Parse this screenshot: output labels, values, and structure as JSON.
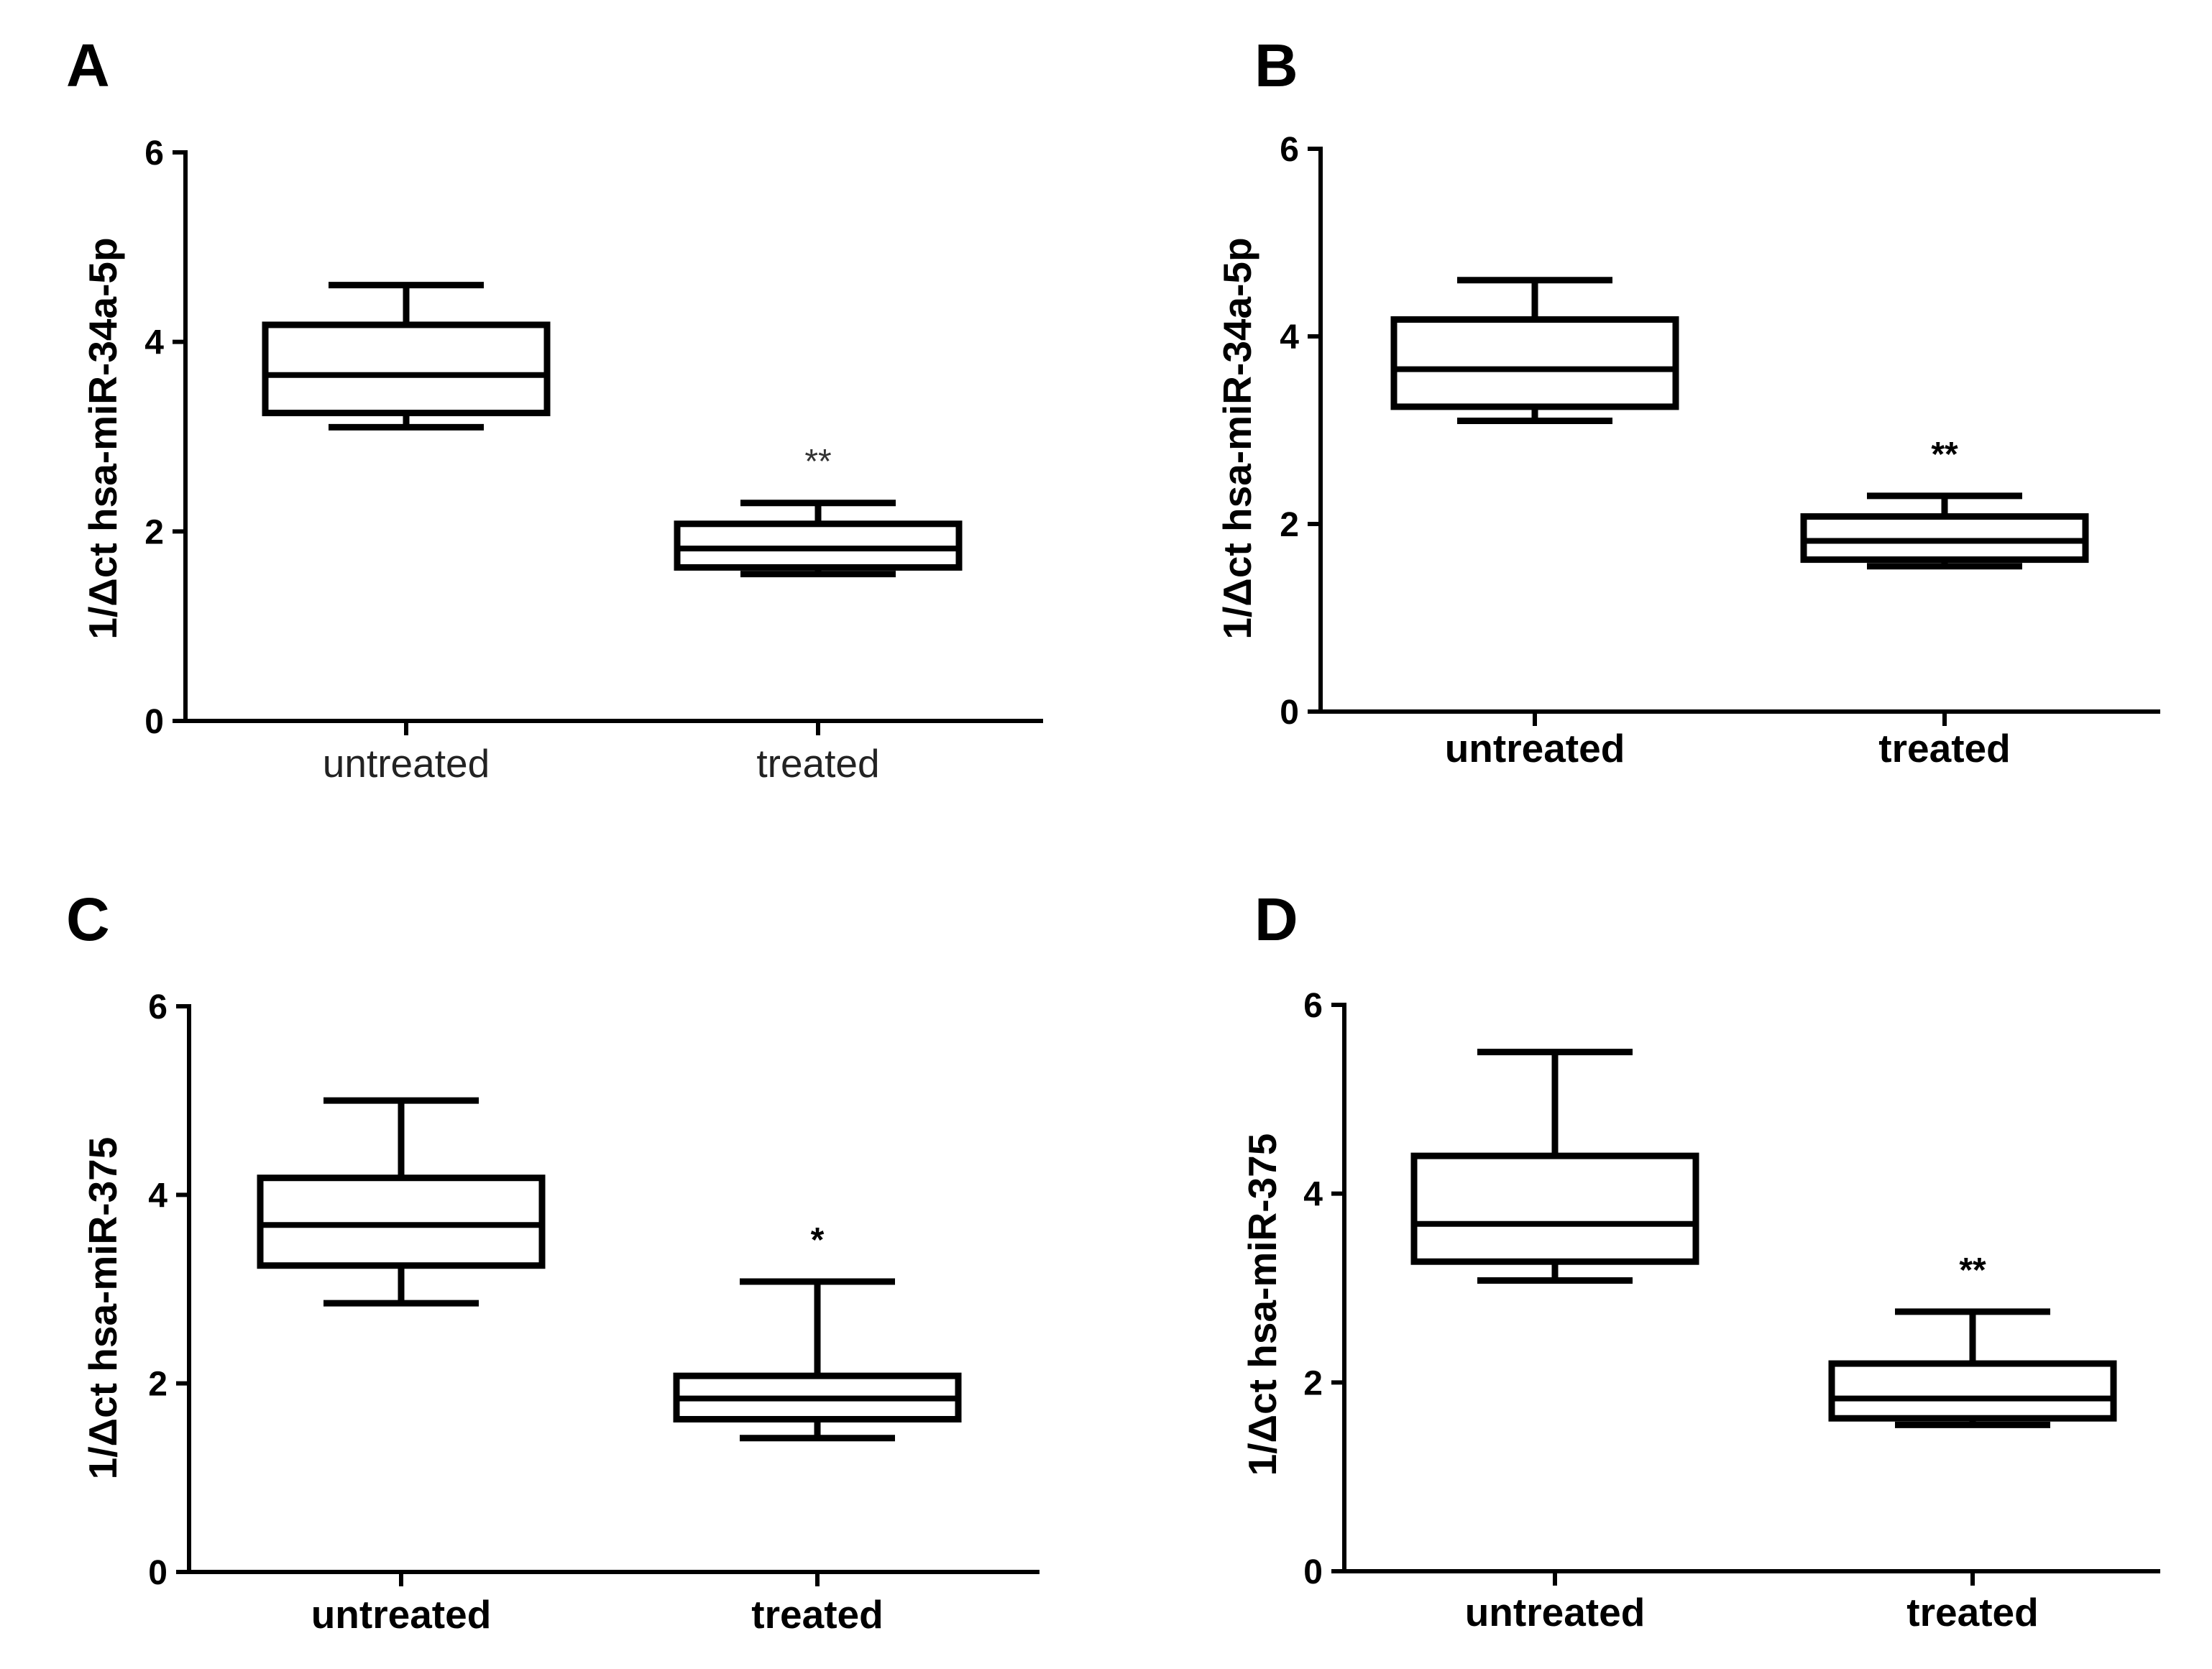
{
  "figure": {
    "title": ""
  },
  "chart_data": [
    {
      "panel": "A",
      "type": "boxplot",
      "ylabel": "1/Δct hsa-miR-34a-5p",
      "xlabel": "",
      "ylim": [
        0,
        6
      ],
      "yticks": [
        0,
        2,
        4,
        6
      ],
      "categories": [
        "untreated",
        "treated"
      ],
      "boxes": [
        {
          "category": "untreated",
          "min": 3.1,
          "q1": 3.25,
          "median": 3.65,
          "q3": 4.18,
          "max": 4.6
        },
        {
          "category": "treated",
          "min": 1.55,
          "q1": 1.62,
          "median": 1.82,
          "q3": 2.08,
          "max": 2.3,
          "significance": "**"
        }
      ]
    },
    {
      "panel": "B",
      "type": "boxplot",
      "ylabel": "1/Δct hsa-miR-34a-5p",
      "xlabel": "",
      "ylim": [
        0,
        6
      ],
      "yticks": [
        0,
        2,
        4,
        6
      ],
      "categories": [
        "untreated",
        "treated"
      ],
      "boxes": [
        {
          "category": "untreated",
          "min": 3.1,
          "q1": 3.25,
          "median": 3.65,
          "q3": 4.18,
          "max": 4.6
        },
        {
          "category": "treated",
          "min": 1.55,
          "q1": 1.62,
          "median": 1.82,
          "q3": 2.08,
          "max": 2.3,
          "significance": "**"
        }
      ]
    },
    {
      "panel": "C",
      "type": "boxplot",
      "ylabel": "1/Δct hsa-miR-375",
      "xlabel": "",
      "ylim": [
        0,
        6
      ],
      "yticks": [
        0,
        2,
        4,
        6
      ],
      "categories": [
        "untreated",
        "treated"
      ],
      "boxes": [
        {
          "category": "untreated",
          "min": 2.85,
          "q1": 3.25,
          "median": 3.68,
          "q3": 4.18,
          "max": 5.0
        },
        {
          "category": "treated",
          "min": 1.42,
          "q1": 1.62,
          "median": 1.84,
          "q3": 2.08,
          "max": 3.08,
          "significance": "*"
        }
      ]
    },
    {
      "panel": "D",
      "type": "boxplot",
      "ylabel": "1/Δct hsa-miR-375",
      "xlabel": "",
      "ylim": [
        0,
        6
      ],
      "yticks": [
        0,
        2,
        4,
        6
      ],
      "categories": [
        "untreated",
        "treated"
      ],
      "boxes": [
        {
          "category": "untreated",
          "min": 3.08,
          "q1": 3.28,
          "median": 3.68,
          "q3": 4.4,
          "max": 5.5
        },
        {
          "category": "treated",
          "min": 1.55,
          "q1": 1.62,
          "median": 1.83,
          "q3": 2.2,
          "max": 2.75,
          "significance": "**"
        }
      ]
    }
  ]
}
